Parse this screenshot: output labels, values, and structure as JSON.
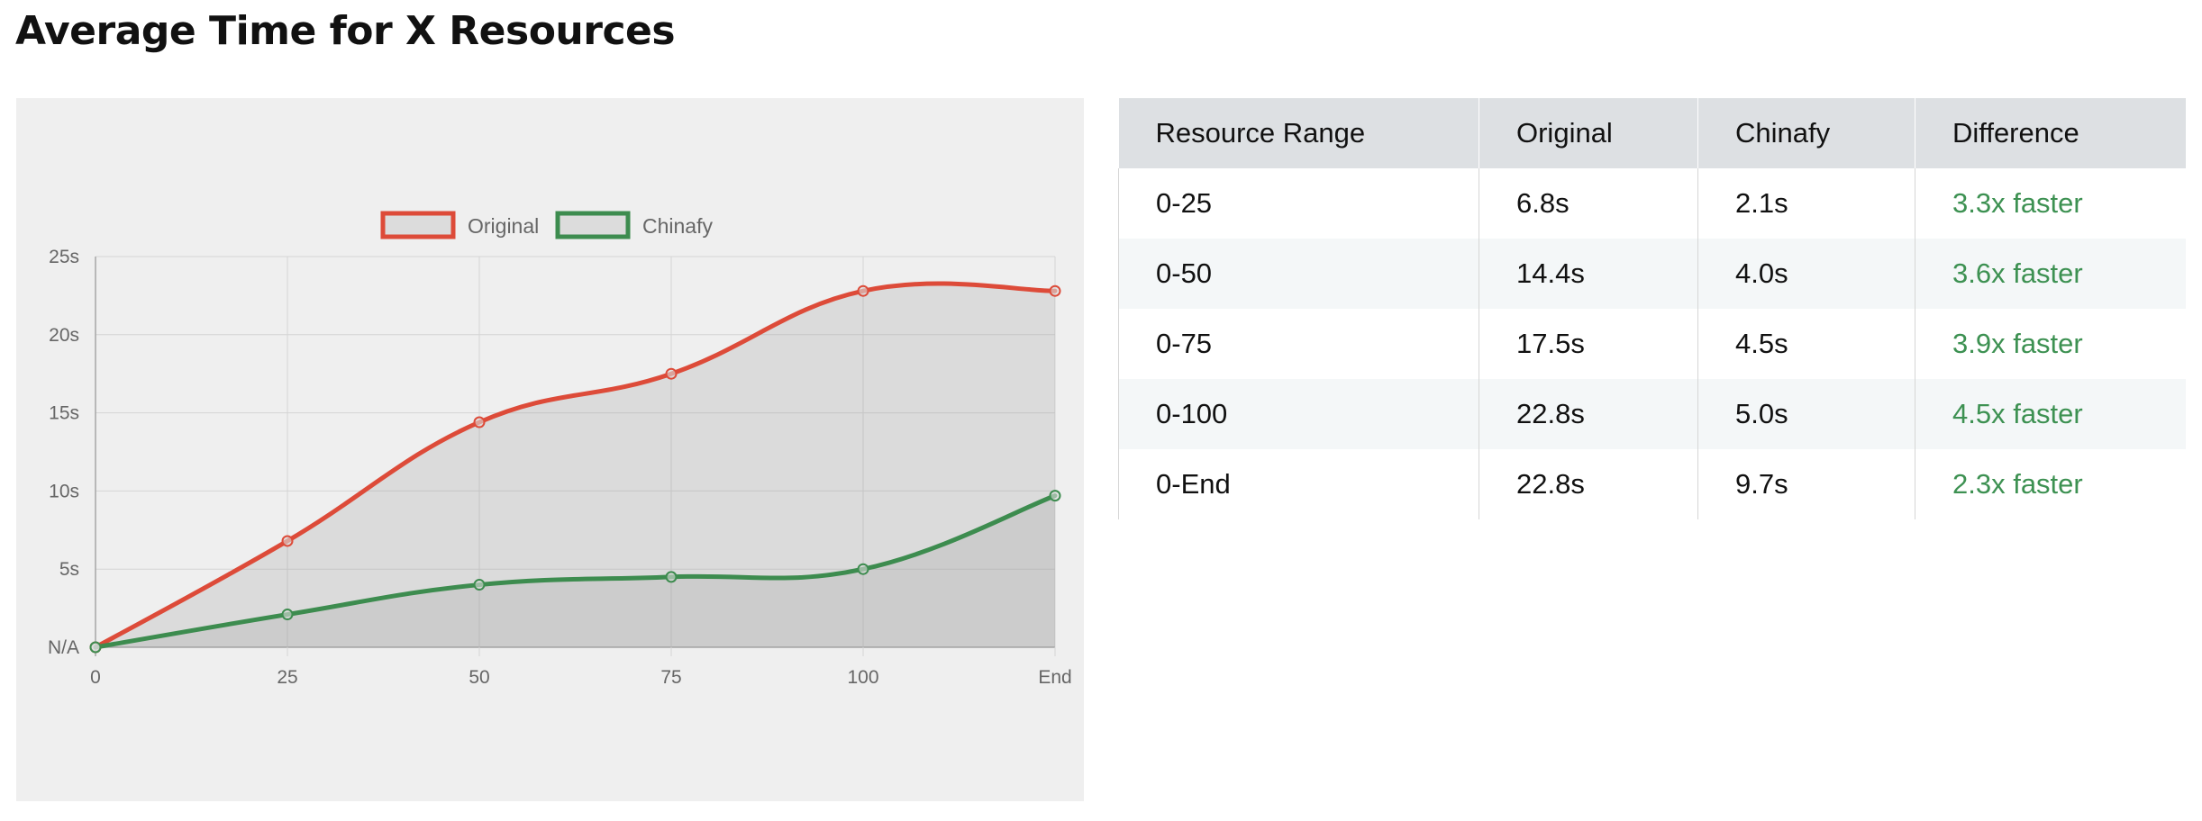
{
  "page": {
    "title": "Average Time for X Resources"
  },
  "chart_data": {
    "type": "area",
    "title": "",
    "xlabel": "",
    "ylabel": "",
    "categories": [
      "0",
      "25",
      "50",
      "75",
      "100",
      "End"
    ],
    "y_tick_labels": [
      "N/A",
      "5s",
      "10s",
      "15s",
      "20s",
      "25s"
    ],
    "y_ticks": [
      0,
      5,
      10,
      15,
      20,
      25
    ],
    "ylim": [
      0,
      25
    ],
    "grid": true,
    "legend_position": "top-center",
    "series": [
      {
        "name": "Original",
        "values": [
          0,
          6.8,
          14.4,
          17.5,
          22.8,
          22.8
        ],
        "color": "#dd4b39"
      },
      {
        "name": "Chinafy",
        "values": [
          0,
          2.1,
          4.0,
          4.5,
          5.0,
          9.7
        ],
        "color": "#3d8c4f"
      }
    ]
  },
  "table": {
    "headers": [
      "Resource Range",
      "Original",
      "Chinafy",
      "Difference"
    ],
    "rows": [
      [
        "0-25",
        "6.8s",
        "2.1s",
        "3.3x faster"
      ],
      [
        "0-50",
        "14.4s",
        "4.0s",
        "3.6x faster"
      ],
      [
        "0-75",
        "17.5s",
        "4.5s",
        "3.9x faster"
      ],
      [
        "0-100",
        "22.8s",
        "5.0s",
        "4.5x faster"
      ],
      [
        "0-End",
        "22.8s",
        "9.7s",
        "2.3x faster"
      ]
    ],
    "difference_color": "#3d9152"
  }
}
